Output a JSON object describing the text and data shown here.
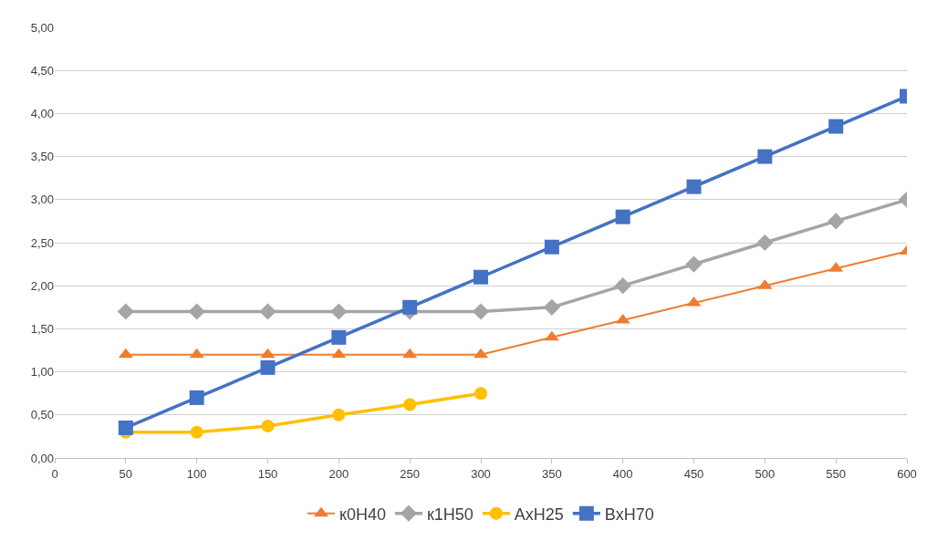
{
  "chart_data": {
    "type": "line",
    "x": [
      50,
      100,
      150,
      200,
      250,
      300,
      350,
      400,
      450,
      500,
      550,
      600
    ],
    "series": [
      {
        "name": "к0Н40",
        "color": "#ed7d31",
        "marker": "triangle",
        "values": [
          1.2,
          1.2,
          1.2,
          1.2,
          1.2,
          1.2,
          1.4,
          1.6,
          1.8,
          2.0,
          2.2,
          2.4
        ]
      },
      {
        "name": "к1Н50",
        "color": "#a5a5a5",
        "marker": "diamond",
        "values": [
          1.7,
          1.7,
          1.7,
          1.7,
          1.7,
          1.7,
          1.75,
          2.0,
          2.25,
          2.5,
          2.75,
          3.0
        ]
      },
      {
        "name": "АхН25",
        "color": "#ffc000",
        "marker": "circle",
        "values": [
          0.3,
          0.3,
          0.37,
          0.5,
          0.62,
          0.75,
          null,
          null,
          null,
          null,
          null,
          null
        ]
      },
      {
        "name": "ВхН70",
        "color": "#4472c4",
        "marker": "square",
        "values": [
          0.35,
          0.7,
          1.05,
          1.4,
          1.75,
          2.1,
          2.45,
          2.8,
          3.15,
          3.5,
          3.85,
          4.2
        ]
      }
    ],
    "xlim": [
      0,
      600
    ],
    "xticks": [
      0,
      50,
      100,
      150,
      200,
      250,
      300,
      350,
      400,
      450,
      500,
      550,
      600
    ],
    "ylim": [
      0,
      5
    ],
    "yticks": [
      {
        "value": 0,
        "label": "0,00"
      },
      {
        "value": 0.5,
        "label": "0,50"
      },
      {
        "value": 1,
        "label": "1,00"
      },
      {
        "value": 1.5,
        "label": "1,50"
      },
      {
        "value": 2,
        "label": "2,00"
      },
      {
        "value": 2.5,
        "label": "2,50"
      },
      {
        "value": 3,
        "label": "3,00"
      },
      {
        "value": 3.5,
        "label": "3,50"
      },
      {
        "value": 4,
        "label": "4,00"
      },
      {
        "value": 4.5,
        "label": "4,50"
      },
      {
        "value": 5,
        "label": "5,00"
      }
    ],
    "grid": "y",
    "legend": "bottom",
    "line_style": "solid"
  }
}
